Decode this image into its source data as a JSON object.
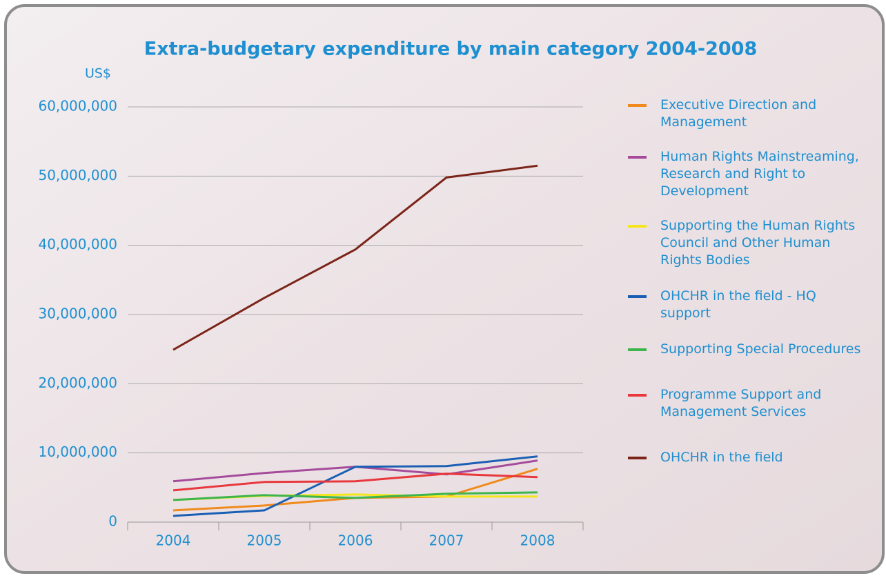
{
  "chart_data": {
    "type": "line",
    "title": "Extra-budgetary expenditure by main category 2004-2008",
    "y_label": "US$",
    "categories": [
      "2004",
      "2005",
      "2006",
      "2007",
      "2008"
    ],
    "ylim": [
      0,
      60000000
    ],
    "yticks": [
      0,
      {
        "value": 10000000,
        "label": "10,000,000"
      },
      {
        "value": 20000000,
        "label": "20,000,000"
      },
      {
        "value": 30000000,
        "label": "30,000,000"
      },
      {
        "value": 40000000,
        "label": "40,000,000"
      },
      {
        "value": 50000000,
        "label": "50,000,000"
      },
      {
        "value": 60000000,
        "label": "60,000,000"
      }
    ],
    "grid": true,
    "series": [
      {
        "name": "Executive Direction and Management",
        "color": "#f18a1c",
        "values": [
          1700000,
          2400000,
          3500000,
          3700000,
          7700000
        ]
      },
      {
        "name": "Human Rights Mainstreaming, Research and Right to Development",
        "color": "#a54b9b",
        "values": [
          5900000,
          7100000,
          8000000,
          6900000,
          8900000
        ]
      },
      {
        "name": "Supporting the Human Rights Council and Other Human Rights Bodies",
        "color": "#f5e61a",
        "values": [
          3200000,
          3800000,
          4000000,
          3700000,
          3700000
        ]
      },
      {
        "name": "OHCHR in the field - HQ support",
        "color": "#1a5fb4",
        "values": [
          900000,
          1700000,
          8000000,
          8100000,
          9500000
        ]
      },
      {
        "name": "Supporting Special Procedures",
        "color": "#3db54a",
        "values": [
          3200000,
          3900000,
          3500000,
          4100000,
          4300000
        ]
      },
      {
        "name": "Programme Support and Management Services",
        "color": "#e8383d",
        "values": [
          4600000,
          5800000,
          5900000,
          7000000,
          6500000
        ]
      },
      {
        "name": "OHCHR in the field",
        "color": "#7b2418",
        "values": [
          24900000,
          32400000,
          39400000,
          49800000,
          51500000
        ]
      }
    ]
  }
}
